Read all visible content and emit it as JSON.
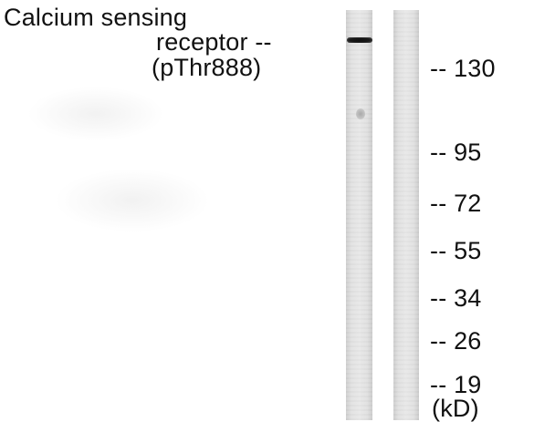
{
  "protein_label": {
    "line1": "Calcium sensing",
    "line2": "receptor --",
    "line3": "(pThr888)"
  },
  "mw_markers": [
    "-- 130",
    "-- 95",
    "-- 72",
    "-- 55",
    "-- 34",
    "-- 26",
    "-- 19"
  ],
  "unit_label": "(kD)",
  "lanes": [
    {
      "has_band": true,
      "band_marker": "130"
    },
    {
      "has_band": false
    }
  ],
  "colors": {
    "band": "#111111",
    "lane": "#e3e3e3",
    "text": "#111111"
  }
}
